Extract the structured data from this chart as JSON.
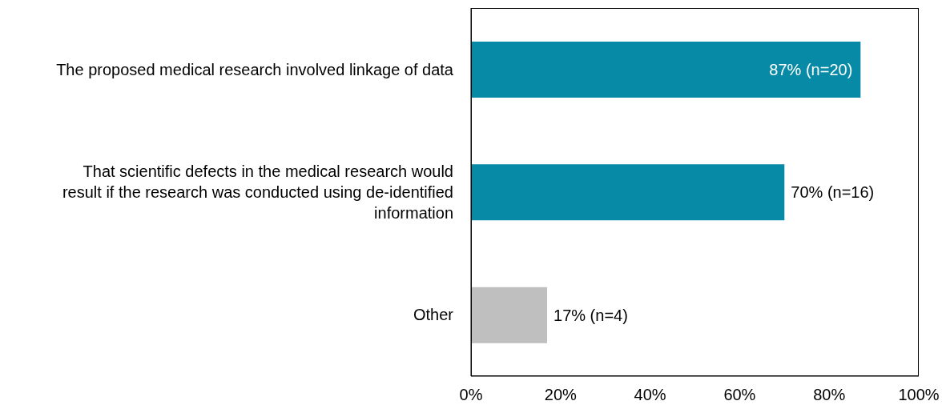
{
  "chart_data": {
    "type": "bar",
    "orientation": "horizontal",
    "categories": [
      "The proposed medical research involved linkage of data",
      "That scientific defects in the medical research would result if the research was conducted using de-identified information",
      "Other"
    ],
    "values": [
      87,
      70,
      17
    ],
    "colors": [
      "#078aa6",
      "#078aa6",
      "#bfbfbf"
    ],
    "value_labels": [
      "87% (n=20)",
      "70% (n=16)",
      "17% (n=4)"
    ],
    "xlim": [
      0,
      100
    ],
    "xticks": [
      {
        "value": 0,
        "label": "0%"
      },
      {
        "value": 20,
        "label": "20%"
      },
      {
        "value": 40,
        "label": "40%"
      },
      {
        "value": 60,
        "label": "60%"
      },
      {
        "value": 80,
        "label": "80%"
      },
      {
        "value": 100,
        "label": "100%"
      }
    ],
    "grid": false,
    "legend": false
  }
}
